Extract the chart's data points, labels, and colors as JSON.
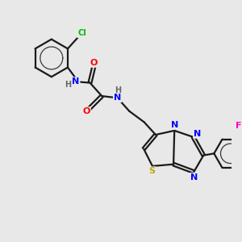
{
  "background_color": "#e8e8e8",
  "bond_color": "#1a1a1a",
  "atom_colors": {
    "N": "#0000ff",
    "O": "#ff0000",
    "Cl": "#00bb00",
    "F": "#ff00cc",
    "S": "#bbaa00",
    "H": "#666666",
    "C": "#1a1a1a"
  },
  "bond_width": 1.6,
  "figsize": [
    3.0,
    3.0
  ],
  "dpi": 100,
  "xlim": [
    0,
    10
  ],
  "ylim": [
    0,
    10
  ]
}
